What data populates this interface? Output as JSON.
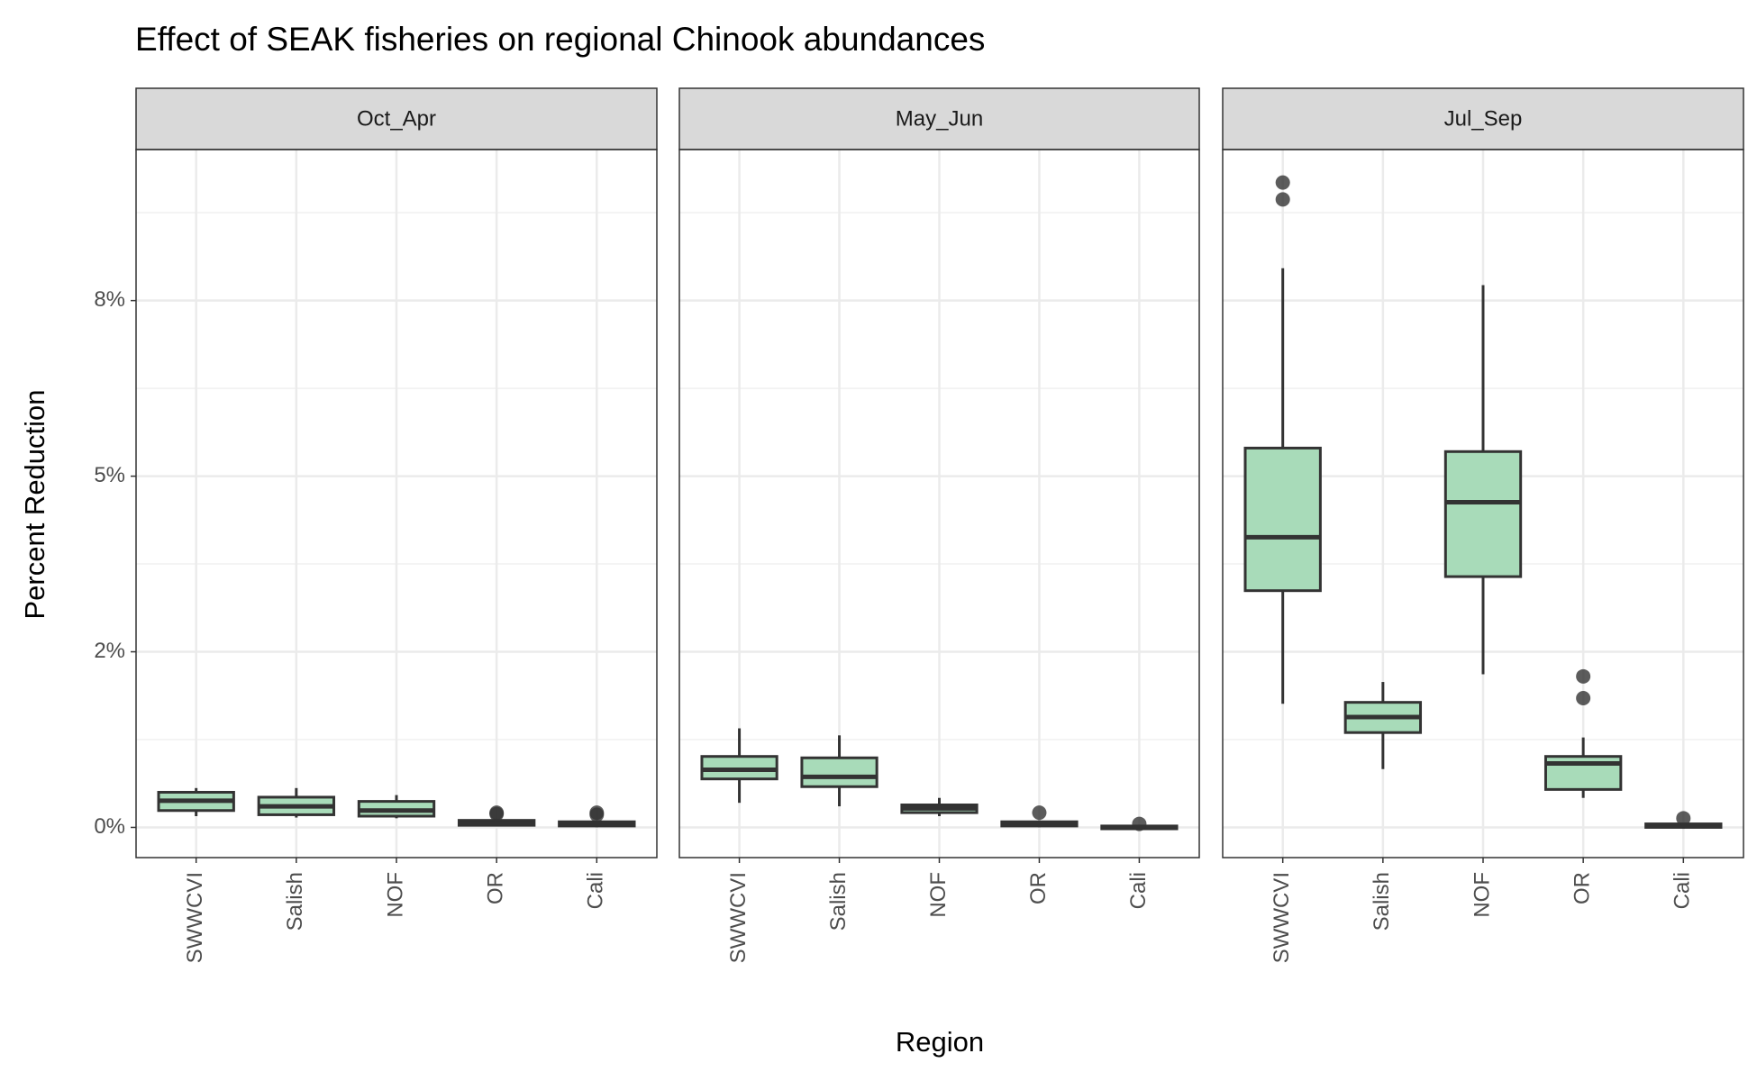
{
  "chart_data": {
    "type": "box",
    "title": "Effect of SEAK fisheries on regional Chinook abundances",
    "x_label": "Region",
    "y_label": "Percent Reduction",
    "categories": [
      "SWWCVI",
      "Salish",
      "NOF",
      "OR",
      "Cali"
    ],
    "color": "#a8dbb9",
    "ylim": [
      -0.43,
      9.65
    ],
    "yticks": [
      {
        "value": 0,
        "label": "0%"
      },
      {
        "value": 2.5,
        "label": "2%"
      },
      {
        "value": 5,
        "label": "5%"
      },
      {
        "value": 7.5,
        "label": "8%"
      }
    ],
    "minor_yticks": [
      1.25,
      3.75,
      6.25,
      8.75
    ],
    "grid": true,
    "panels": [
      {
        "name": "Oct_Apr",
        "boxes": [
          {
            "min": 0.16,
            "q1": 0.24,
            "median": 0.38,
            "q3": 0.5,
            "max": 0.56,
            "outliers": []
          },
          {
            "min": 0.14,
            "q1": 0.18,
            "median": 0.3,
            "q3": 0.43,
            "max": 0.56,
            "outliers": []
          },
          {
            "min": 0.13,
            "q1": 0.16,
            "median": 0.24,
            "q3": 0.37,
            "max": 0.46,
            "outliers": []
          },
          {
            "min": 0.02,
            "q1": 0.03,
            "median": 0.06,
            "q3": 0.1,
            "max": 0.11,
            "outliers": [
              0.21,
              0.19
            ]
          },
          {
            "min": 0,
            "q1": 0.02,
            "median": 0.05,
            "q3": 0.08,
            "max": 0.1,
            "outliers": [
              0.21,
              0.18
            ]
          }
        ]
      },
      {
        "name": "May_Jun",
        "boxes": [
          {
            "min": 0.35,
            "q1": 0.69,
            "median": 0.82,
            "q3": 1.01,
            "max": 1.41,
            "outliers": []
          },
          {
            "min": 0.3,
            "q1": 0.58,
            "median": 0.72,
            "q3": 0.99,
            "max": 1.31,
            "outliers": []
          },
          {
            "min": 0.16,
            "q1": 0.21,
            "median": 0.27,
            "q3": 0.32,
            "max": 0.42,
            "outliers": []
          },
          {
            "min": 0,
            "q1": 0.02,
            "median": 0.05,
            "q3": 0.08,
            "max": 0.1,
            "outliers": [
              0.21
            ]
          },
          {
            "min": -0.03,
            "q1": -0.02,
            "median": 0,
            "q3": 0.02,
            "max": 0.03,
            "outliers": [
              0.05
            ]
          }
        ]
      },
      {
        "name": "Jul_Sep",
        "boxes": [
          {
            "min": 1.76,
            "q1": 3.37,
            "median": 4.13,
            "q3": 5.4,
            "max": 7.96,
            "outliers": [
              8.94,
              9.18
            ]
          },
          {
            "min": 0.83,
            "q1": 1.35,
            "median": 1.57,
            "q3": 1.78,
            "max": 2.07,
            "outliers": []
          },
          {
            "min": 2.18,
            "q1": 3.57,
            "median": 4.63,
            "q3": 5.35,
            "max": 7.72,
            "outliers": []
          },
          {
            "min": 0.42,
            "q1": 0.54,
            "median": 0.91,
            "q3": 1.01,
            "max": 1.28,
            "outliers": [
              1.84,
              2.15
            ]
          },
          {
            "min": -0.02,
            "q1": 0,
            "median": 0.03,
            "q3": 0.05,
            "max": 0.06,
            "outliers": [
              0.13
            ]
          }
        ]
      }
    ]
  }
}
